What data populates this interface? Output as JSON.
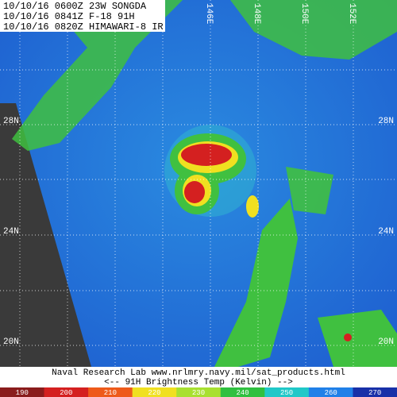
{
  "header": {
    "lines": [
      "10/10/16 0600Z 23W SONGDA",
      "10/10/16 0841Z F-18 91H",
      "10/10/16 0820Z HIMAWARI-8 IR"
    ]
  },
  "latitude_labels": [
    "28N",
    "24N",
    "20N"
  ],
  "longitude_labels": [
    "146E",
    "148E",
    "150E",
    "152E"
  ],
  "footer": {
    "credit": "Naval Research Lab  www.nrlmry.navy.mil/sat_products.html",
    "legend_title": "<--   91H Brightness Temp (Kelvin)   -->"
  },
  "colorbar": [
    {
      "value": 190,
      "color": "#8a1c1c"
    },
    {
      "value": 200,
      "color": "#d42020"
    },
    {
      "value": 210,
      "color": "#ee5a1a"
    },
    {
      "value": 220,
      "color": "#f0e020"
    },
    {
      "value": 230,
      "color": "#a8e030"
    },
    {
      "value": 240,
      "color": "#30c040"
    },
    {
      "value": 250,
      "color": "#20c8c8"
    },
    {
      "value": 260,
      "color": "#2080e8"
    },
    {
      "value": 270,
      "color": "#1830a8"
    }
  ]
}
